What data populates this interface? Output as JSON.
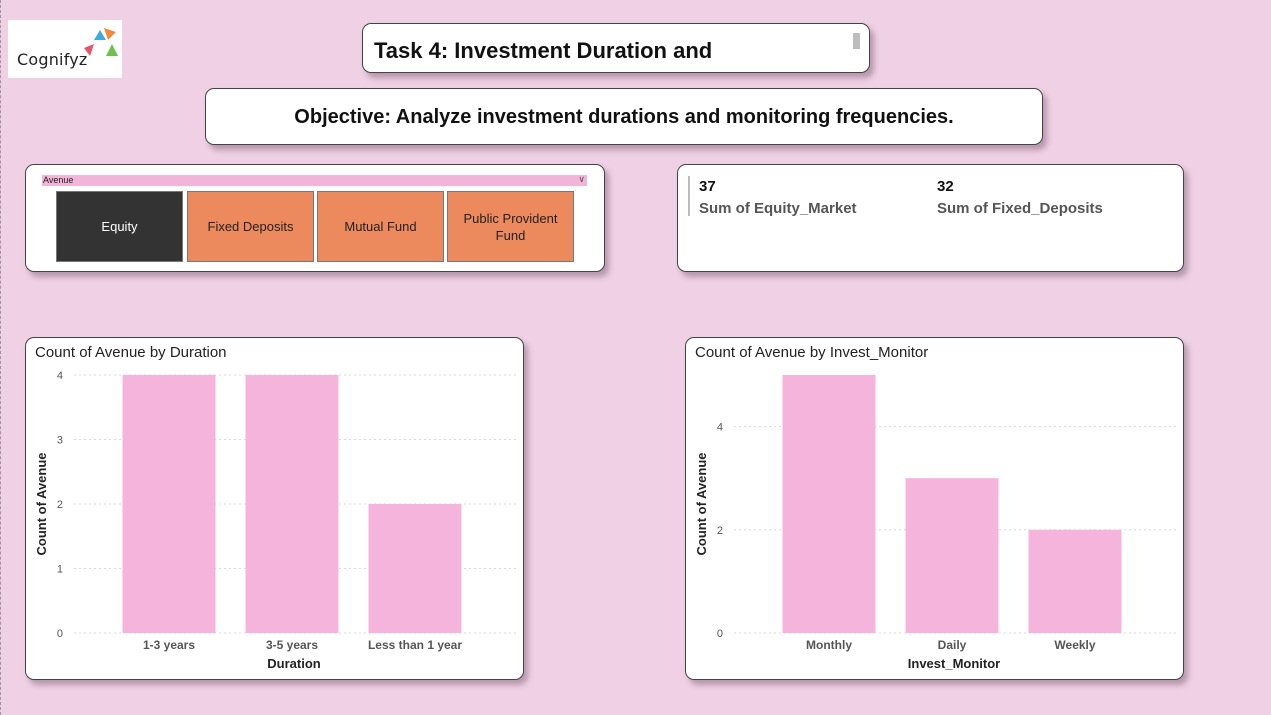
{
  "logo": {
    "text": "Cognifyz"
  },
  "header": {
    "title": "Task 4: Investment Duration and",
    "objective": "Objective:  Analyze investment durations and monitoring frequencies."
  },
  "slicer": {
    "label": "Avenue",
    "options": [
      {
        "label": "Equity",
        "selected": true
      },
      {
        "label": "Fixed Deposits",
        "selected": false
      },
      {
        "label": "Mutual Fund",
        "selected": false
      },
      {
        "label": "Public Provident Fund",
        "selected": false
      }
    ]
  },
  "kpis": [
    {
      "value": "37",
      "label": "Sum of Equity_Market"
    },
    {
      "value": "32",
      "label": "Sum of Fixed_Deposits"
    }
  ],
  "colors": {
    "bar": "#f4b4dc",
    "selected_tile": "#333333",
    "tile": "#ec8a5e",
    "background": "#f0d0e4"
  },
  "chart_data": [
    {
      "type": "bar",
      "title": "Count of Avenue by Duration",
      "xlabel": "Duration",
      "ylabel": "Count of Avenue",
      "categories": [
        "1-3 years",
        "3-5 years",
        "Less than 1 year"
      ],
      "values": [
        4,
        4,
        2
      ],
      "yticks": [
        0,
        1,
        2,
        3,
        4
      ],
      "ylim": [
        0,
        4
      ],
      "grid": true
    },
    {
      "type": "bar",
      "title": "Count of Avenue by Invest_Monitor",
      "xlabel": "Invest_Monitor",
      "ylabel": "Count of Avenue",
      "categories": [
        "Monthly",
        "Daily",
        "Weekly"
      ],
      "values": [
        5,
        3,
        2
      ],
      "yticks": [
        0,
        2,
        4
      ],
      "ylim": [
        0,
        5
      ],
      "grid": true
    }
  ]
}
